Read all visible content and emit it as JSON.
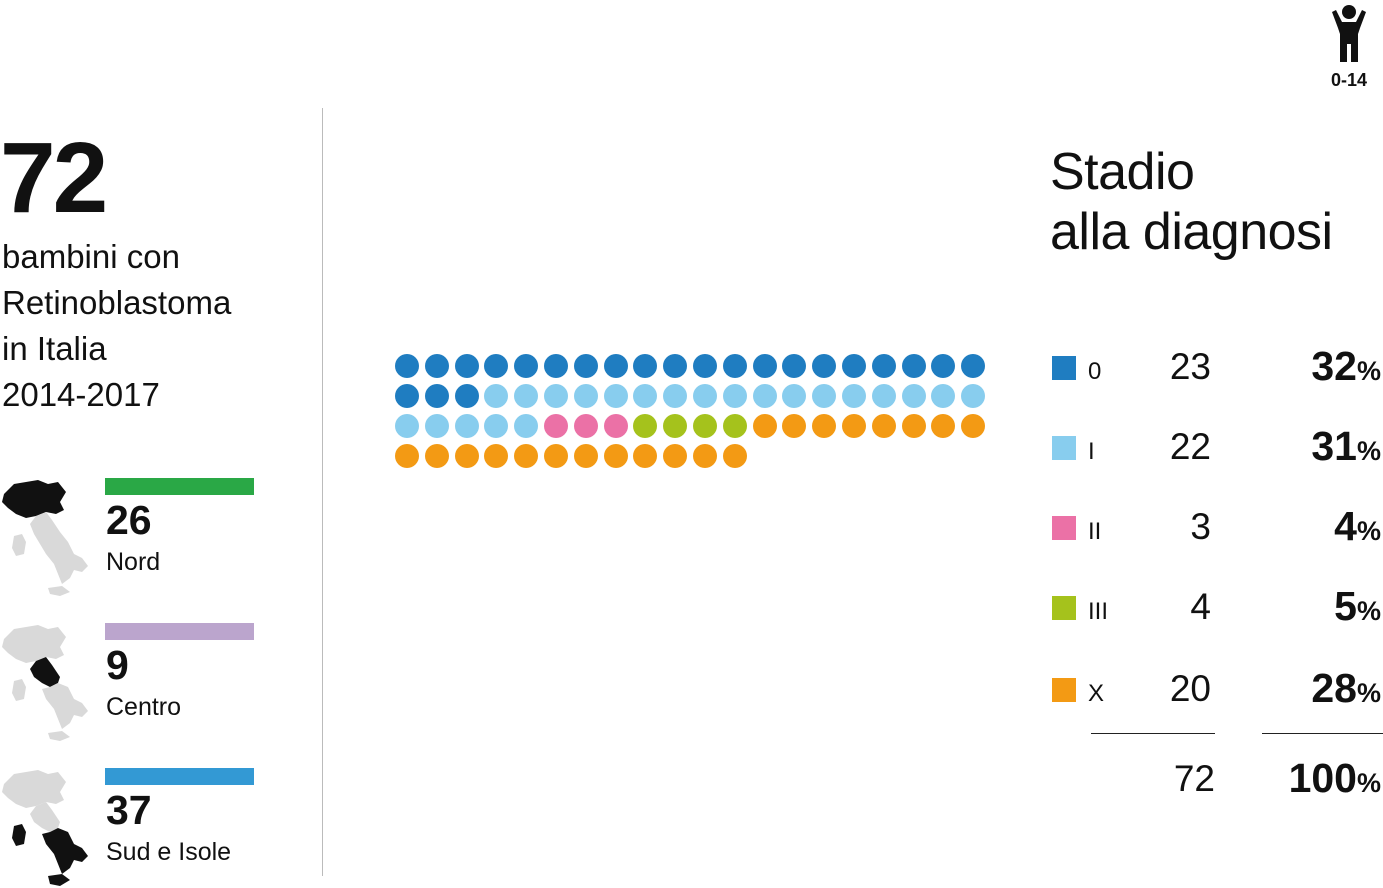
{
  "total": {
    "number": "72",
    "desc_lines": [
      "bambini con",
      "Retinoblastoma",
      "in Italia",
      "2014-2017"
    ]
  },
  "regions": [
    {
      "name": "Nord",
      "count": "26",
      "color": "#2aa846"
    },
    {
      "name": "Centro",
      "count": "9",
      "color": "#bba5cd"
    },
    {
      "name": "Sud e Isole",
      "count": "37",
      "color": "#3399d4"
    }
  ],
  "age_group": {
    "label": "0-14",
    "icon": "child-icon"
  },
  "stage": {
    "title_lines": [
      "Stadio",
      "alla diagnosi"
    ],
    "items": [
      {
        "label": "0",
        "count": 23,
        "pct": "32",
        "color": "#1f7dc1"
      },
      {
        "label": "I",
        "count": 22,
        "pct": "31",
        "color": "#88cdee"
      },
      {
        "label": "II",
        "count": 3,
        "pct": "4",
        "color": "#eb71a6"
      },
      {
        "label": "III",
        "count": 4,
        "pct": "5",
        "color": "#a5c21c"
      },
      {
        "label": "X",
        "count": 20,
        "pct": "28",
        "color": "#f39a14"
      }
    ],
    "total_count": "72",
    "total_pct": "100",
    "pct_symbol": "%"
  }
}
